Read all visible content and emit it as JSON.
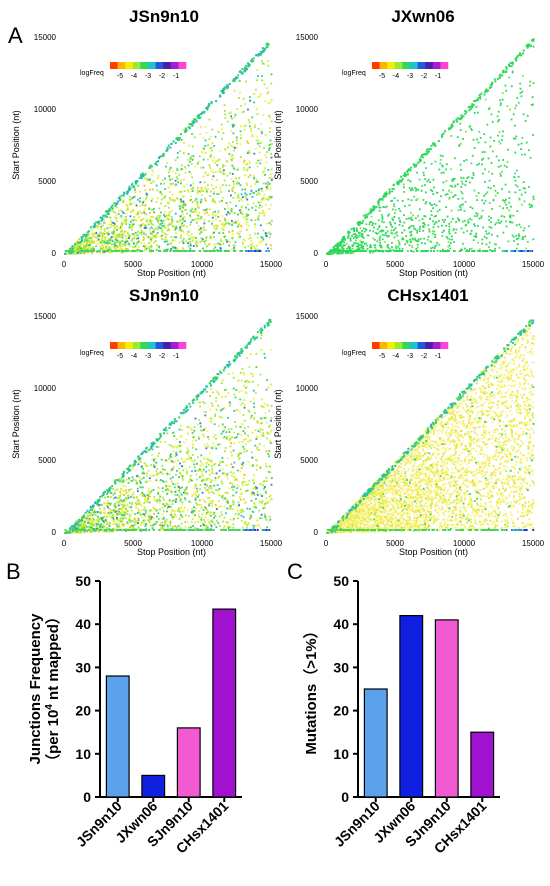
{
  "panel_letters": {
    "a": "A",
    "b": "B",
    "c": "C"
  },
  "colorbar": {
    "title": "logFreq",
    "ticks": [
      "-5",
      "-4",
      "-3",
      "-2",
      "-1"
    ],
    "colors": [
      "#ff3b00",
      "#ffb400",
      "#f2ef00",
      "#9fe82f",
      "#2fd85a",
      "#1fc3c8",
      "#1f5ae0",
      "#4b1fa8",
      "#a01fd0",
      "#ff3fd6"
    ]
  },
  "chart_data": [
    {
      "type": "heatmap",
      "title": "JSn9n10",
      "xlabel": "Stop Position (nt)",
      "ylabel": "Start Position (nt)",
      "xlim": [
        0,
        15000
      ],
      "ylim": [
        0,
        15000
      ],
      "xticks": [
        "0",
        "5000",
        "10000",
        "15000"
      ],
      "yticks": [
        "0",
        "5000",
        "10000",
        "15000"
      ],
      "density": "medium",
      "palette": "mixed"
    },
    {
      "type": "heatmap",
      "title": "JXwn06",
      "xlabel": "Stop Position (nt)",
      "ylabel": "Start Position (nt)",
      "xlim": [
        0,
        15000
      ],
      "ylim": [
        0,
        15000
      ],
      "xticks": [
        "0",
        "5000",
        "10000",
        "15000"
      ],
      "yticks": [
        "0",
        "5000",
        "10000",
        "15000"
      ],
      "density": "sparse",
      "palette": "green"
    },
    {
      "type": "heatmap",
      "title": "SJn9n10",
      "xlabel": "Stop Position (nt)",
      "ylabel": "Start Position (nt)",
      "xlim": [
        0,
        15000
      ],
      "ylim": [
        0,
        15000
      ],
      "xticks": [
        "0",
        "5000",
        "10000",
        "15000"
      ],
      "yticks": [
        "0",
        "5000",
        "10000",
        "15000"
      ],
      "density": "medium",
      "palette": "mixed"
    },
    {
      "type": "heatmap",
      "title": "CHsx1401",
      "xlabel": "Stop Position (nt)",
      "ylabel": "Start Position (nt)",
      "xlim": [
        0,
        15000
      ],
      "ylim": [
        0,
        15000
      ],
      "xticks": [
        "0",
        "5000",
        "10000",
        "15000"
      ],
      "yticks": [
        "0",
        "5000",
        "10000",
        "15000"
      ],
      "density": "dense",
      "palette": "yellow"
    },
    {
      "type": "bar",
      "ylabel_line1": "Junctions Frequency",
      "ylabel_line2_pre": "（per 10",
      "ylabel_line2_sup": "4",
      "ylabel_line2_post": " nt mapped）",
      "categories": [
        "JSn9n10",
        "JXwn06",
        "SJn9n10",
        "CHsx1401"
      ],
      "values": [
        28,
        5,
        16,
        43.5
      ],
      "colors": [
        "#5aa3ec",
        "#1020e0",
        "#f25ad2",
        "#a012d0"
      ],
      "ylim": [
        0,
        50
      ],
      "yticks": [
        0,
        10,
        20,
        30,
        40,
        50
      ]
    },
    {
      "type": "bar",
      "ylabel": "Mutations（>1%）",
      "categories": [
        "JSn9n10",
        "JXwn06",
        "SJn9n10",
        "CHsx1401"
      ],
      "values": [
        25,
        42,
        41,
        15
      ],
      "colors": [
        "#5aa3ec",
        "#1020e0",
        "#f25ad2",
        "#a012d0"
      ],
      "ylim": [
        0,
        50
      ],
      "yticks": [
        0,
        10,
        20,
        30,
        40,
        50
      ]
    }
  ]
}
